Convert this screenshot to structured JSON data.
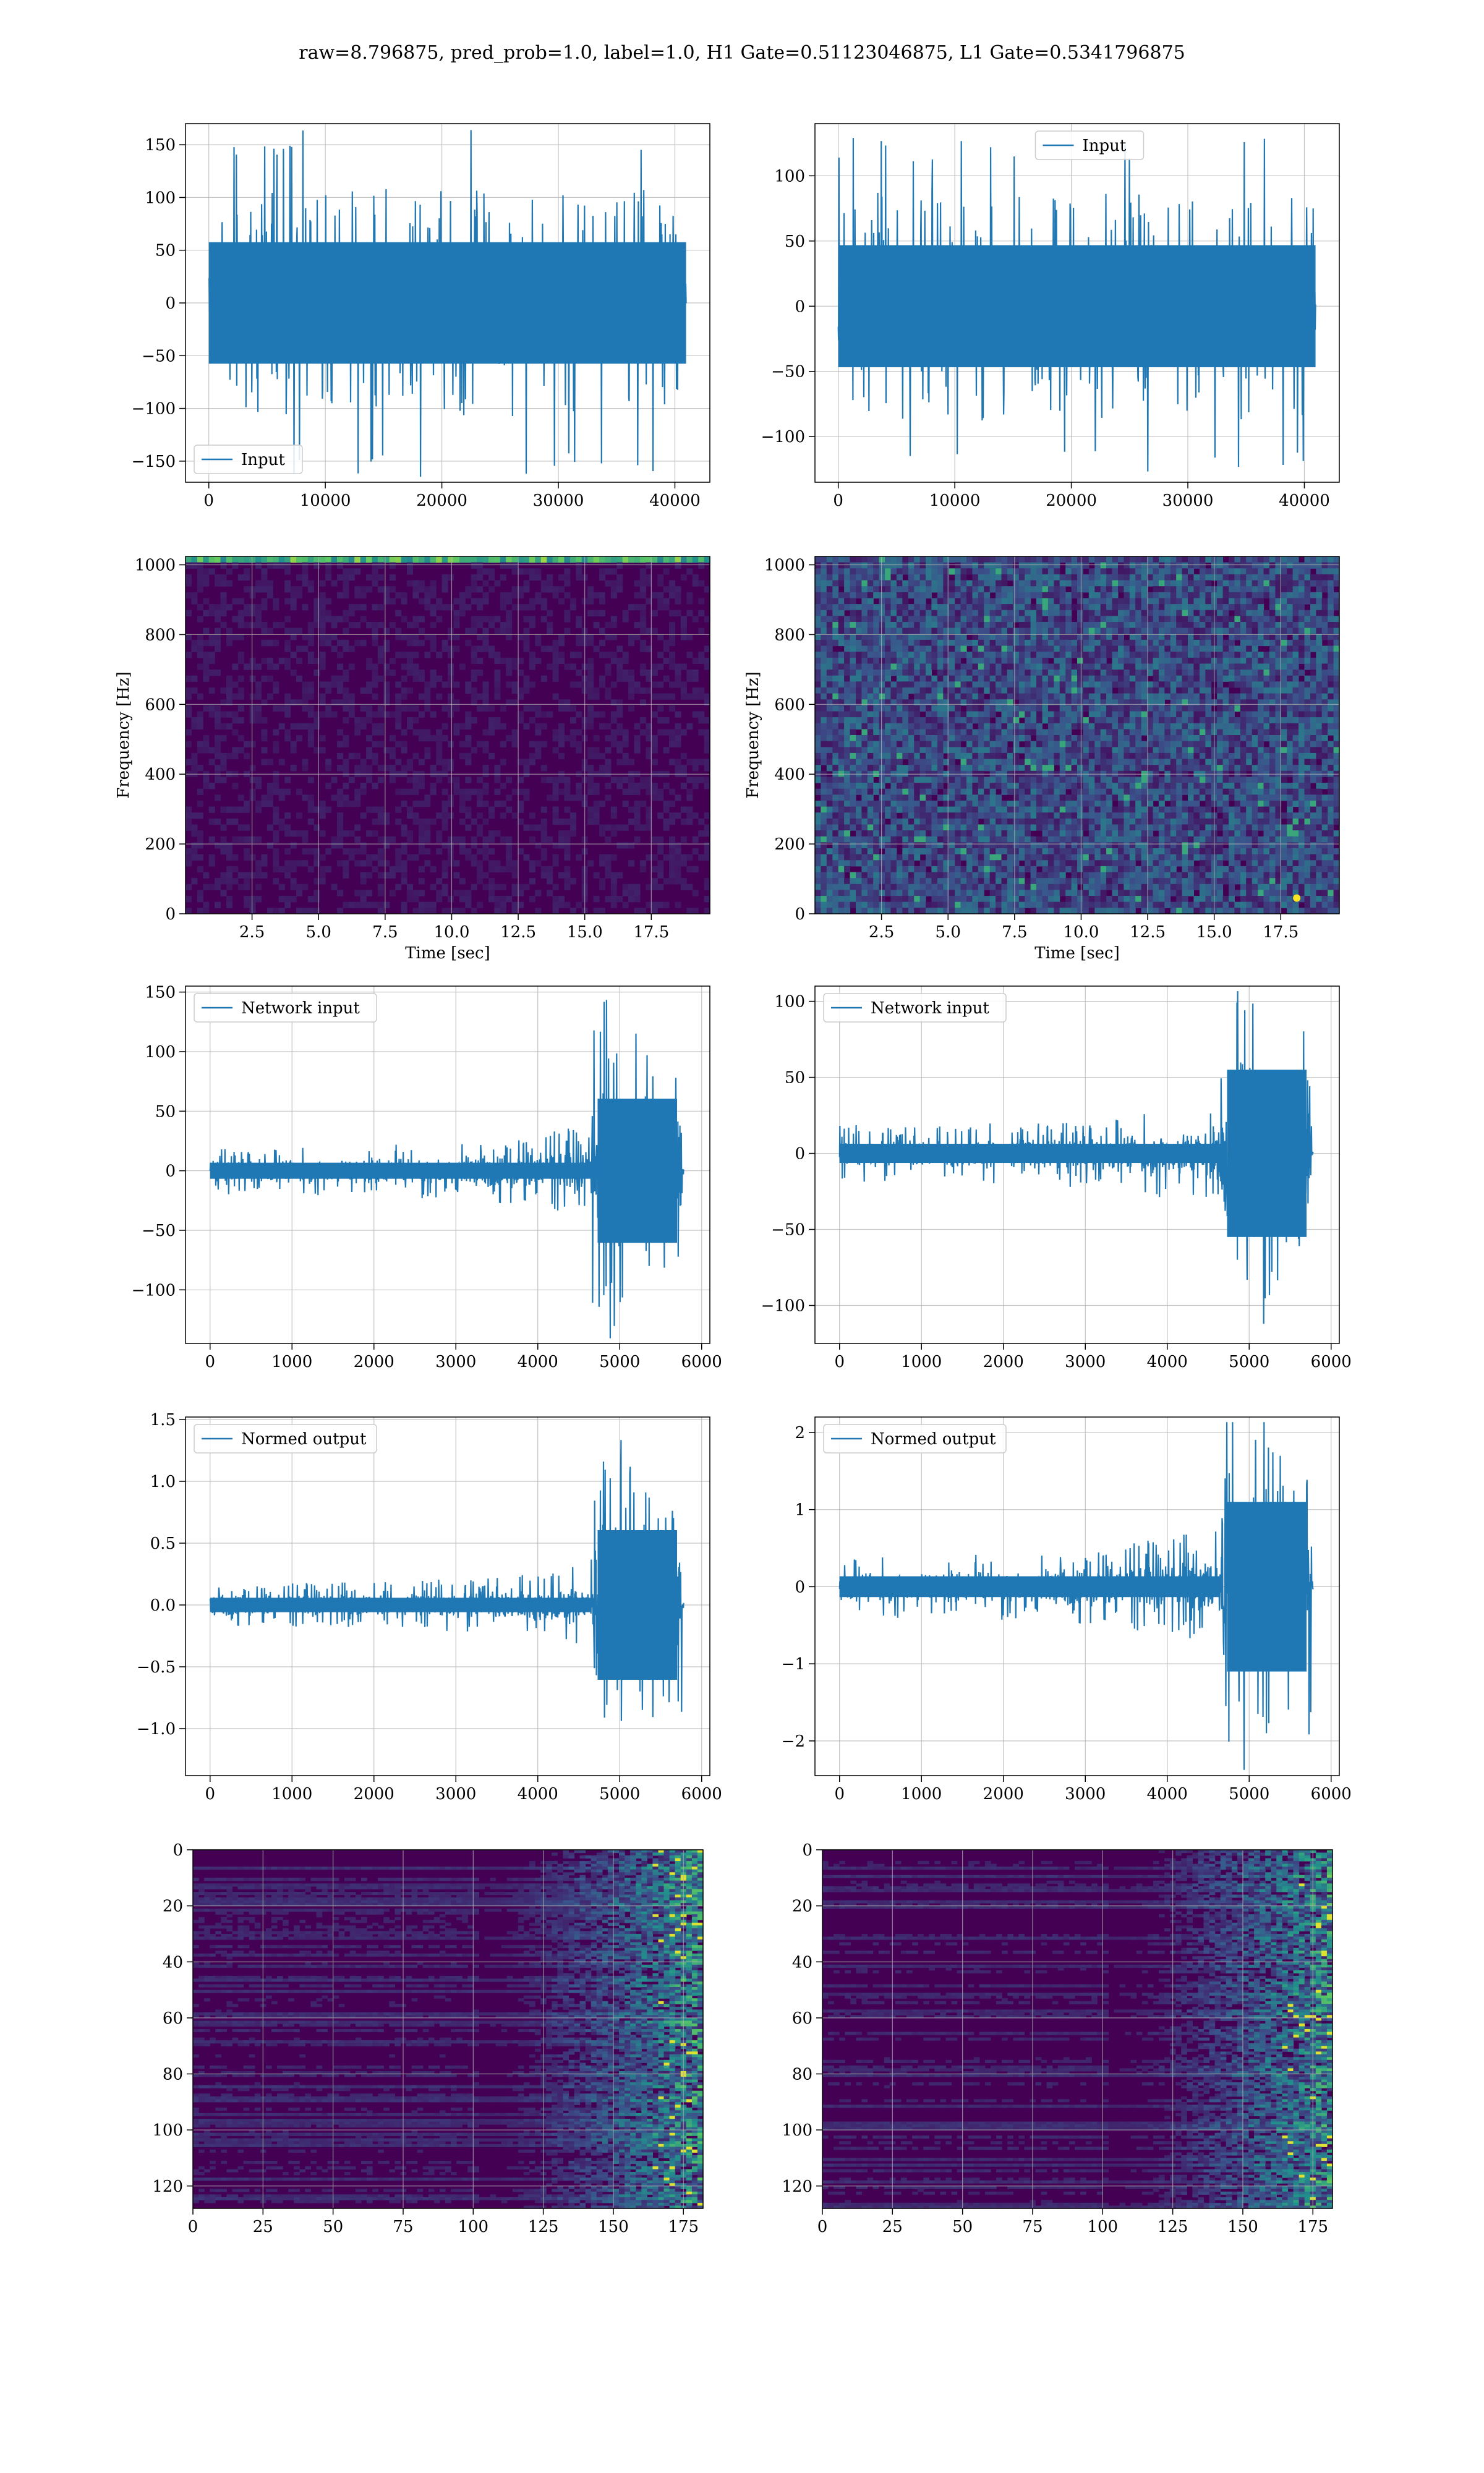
{
  "figure": {
    "title": "raw=8.796875, pred_prob=1.0, label=1.0, H1 Gate=0.51123046875, L1 Gate=0.5341796875"
  },
  "colors": {
    "line": "#1f77b4",
    "grid": "#b0b0b0",
    "viridis_low": "#440154",
    "viridis_mid": "#21918c",
    "viridis_high": "#fde725"
  },
  "chart_data": [
    {
      "id": "input-h1",
      "type": "line",
      "series": [
        {
          "name": "Input"
        }
      ],
      "xlim": [
        -2000,
        43000
      ],
      "ylim": [
        -170,
        170
      ],
      "xticks": [
        0,
        10000,
        20000,
        30000,
        40000
      ],
      "yticks": [
        -150,
        -100,
        -50,
        0,
        50,
        100,
        150
      ],
      "ytick_labels": [
        "−150",
        "−100",
        "−50",
        "0",
        "50",
        "100",
        "150"
      ],
      "legend": "lower-left",
      "grid": true,
      "signal": {
        "x_start": 0,
        "x_end": 40960,
        "profile": "stationary",
        "band": 80,
        "peaks": 165
      }
    },
    {
      "id": "input-l1",
      "type": "line",
      "series": [
        {
          "name": "Input"
        }
      ],
      "xlim": [
        -2000,
        43000
      ],
      "ylim": [
        -135,
        140
      ],
      "xticks": [
        0,
        10000,
        20000,
        30000,
        40000
      ],
      "yticks": [
        -100,
        -50,
        0,
        50,
        100
      ],
      "ytick_labels": [
        "−100",
        "−50",
        "0",
        "50",
        "100"
      ],
      "legend": "upper-center",
      "grid": true,
      "signal": {
        "x_start": 0,
        "x_end": 40960,
        "profile": "stationary",
        "band": 65,
        "peaks": 130
      }
    },
    {
      "id": "spec-h1",
      "type": "heatmap",
      "variant": "spectrogram-h1",
      "xlim": [
        0,
        19.7
      ],
      "ylim": [
        0,
        1024
      ],
      "xticks": [
        2.5,
        5.0,
        7.5,
        10.0,
        12.5,
        15.0,
        17.5
      ],
      "xtick_labels": [
        "2.5",
        "5.0",
        "7.5",
        "10.0",
        "12.5",
        "15.0",
        "17.5"
      ],
      "yticks": [
        0,
        200,
        400,
        600,
        800,
        1000
      ],
      "xlabel": "Time [sec]",
      "ylabel": "Frequency [Hz]",
      "grid": true
    },
    {
      "id": "spec-l1",
      "type": "heatmap",
      "variant": "spectrogram-l1",
      "xlim": [
        0,
        19.7
      ],
      "ylim": [
        0,
        1024
      ],
      "xticks": [
        2.5,
        5.0,
        7.5,
        10.0,
        12.5,
        15.0,
        17.5
      ],
      "xtick_labels": [
        "2.5",
        "5.0",
        "7.5",
        "10.0",
        "12.5",
        "15.0",
        "17.5"
      ],
      "yticks": [
        0,
        200,
        400,
        600,
        800,
        1000
      ],
      "xlabel": "Time [sec]",
      "ylabel": "Frequency [Hz]",
      "grid": true
    },
    {
      "id": "netin-h1",
      "type": "line",
      "series": [
        {
          "name": "Network input"
        }
      ],
      "xlim": [
        -300,
        6100
      ],
      "ylim": [
        -145,
        155
      ],
      "xticks": [
        0,
        1000,
        2000,
        3000,
        4000,
        5000,
        6000
      ],
      "yticks": [
        -100,
        -50,
        0,
        50,
        100,
        150
      ],
      "ytick_labels": [
        "−100",
        "−50",
        "0",
        "50",
        "100",
        "150"
      ],
      "legend": "upper-left",
      "grid": true,
      "signal": {
        "x_start": 0,
        "x_end": 5780,
        "profile": "chirp",
        "quiet": 15,
        "loud": 110,
        "burst_start": 4650,
        "burst_end": 5760
      }
    },
    {
      "id": "netin-l1",
      "type": "line",
      "series": [
        {
          "name": "Network input"
        }
      ],
      "xlim": [
        -300,
        6100
      ],
      "ylim": [
        -125,
        110
      ],
      "xticks": [
        0,
        1000,
        2000,
        3000,
        4000,
        5000,
        6000
      ],
      "yticks": [
        -100,
        -50,
        0,
        50,
        100
      ],
      "ytick_labels": [
        "−100",
        "−50",
        "0",
        "50",
        "100"
      ],
      "legend": "upper-left",
      "grid": true,
      "signal": {
        "x_start": 0,
        "x_end": 5780,
        "profile": "chirp",
        "quiet": 14,
        "loud": 100,
        "burst_start": 4650,
        "burst_end": 5760
      }
    },
    {
      "id": "normed-h1",
      "type": "line",
      "series": [
        {
          "name": "Normed output"
        }
      ],
      "xlim": [
        -300,
        6100
      ],
      "ylim": [
        -1.38,
        1.52
      ],
      "xticks": [
        0,
        1000,
        2000,
        3000,
        4000,
        5000,
        6000
      ],
      "yticks": [
        -1.0,
        -0.5,
        0.0,
        0.5,
        1.0,
        1.5
      ],
      "ytick_labels": [
        "−1.0",
        "−0.5",
        "0.0",
        "0.5",
        "1.0",
        "1.5"
      ],
      "legend": "upper-left",
      "grid": true,
      "signal": {
        "x_start": 0,
        "x_end": 5780,
        "profile": "chirp",
        "quiet": 0.13,
        "loud": 1.1,
        "burst_start": 4650,
        "burst_end": 5760
      }
    },
    {
      "id": "normed-l1",
      "type": "line",
      "series": [
        {
          "name": "Normed output"
        }
      ],
      "xlim": [
        -300,
        6100
      ],
      "ylim": [
        -2.45,
        2.2
      ],
      "xticks": [
        0,
        1000,
        2000,
        3000,
        4000,
        5000,
        6000
      ],
      "yticks": [
        -2,
        -1,
        0,
        1,
        2
      ],
      "ytick_labels": [
        "−2",
        "−1",
        "0",
        "1",
        "2"
      ],
      "legend": "upper-left",
      "grid": true,
      "signal": {
        "x_start": 0,
        "x_end": 5780,
        "profile": "chirp",
        "quiet": 0.3,
        "loud": 2.0,
        "burst_start": 4650,
        "burst_end": 5760
      }
    },
    {
      "id": "feat-h1",
      "type": "heatmap",
      "variant": "feature-map",
      "xlim": [
        0,
        182
      ],
      "ylim": [
        128,
        0
      ],
      "xticks": [
        0,
        25,
        50,
        75,
        100,
        125,
        150,
        175
      ],
      "yticks": [
        0,
        20,
        40,
        60,
        80,
        100,
        120
      ],
      "grid": true
    },
    {
      "id": "feat-l1",
      "type": "heatmap",
      "variant": "feature-map",
      "xlim": [
        0,
        182
      ],
      "ylim": [
        128,
        0
      ],
      "xticks": [
        0,
        25,
        50,
        75,
        100,
        125,
        150,
        175
      ],
      "yticks": [
        0,
        20,
        40,
        60,
        80,
        100,
        120
      ],
      "grid": true
    }
  ]
}
